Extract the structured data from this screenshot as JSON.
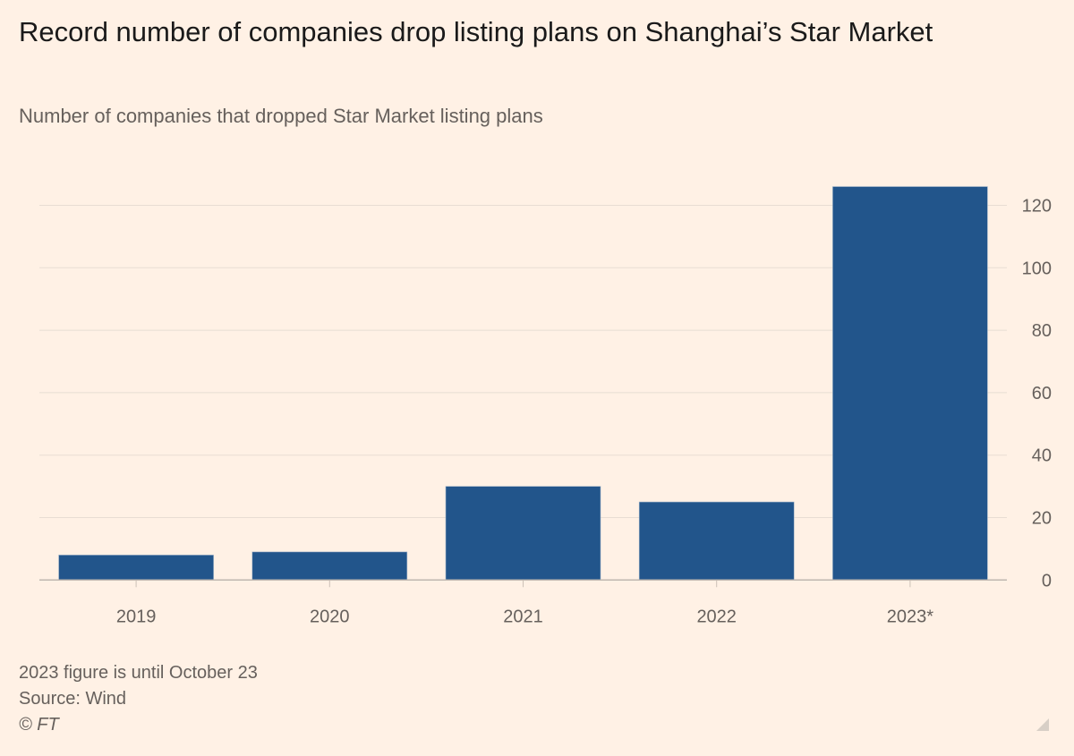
{
  "title": "Record number of companies drop listing plans on Shanghai’s Star Market",
  "subtitle": "Number of companies that dropped Star Market listing plans",
  "notes": {
    "footnote": "2023 figure is until October 23",
    "source": "Source: Wind",
    "copyright": "© FT"
  },
  "colors": {
    "bar": "#22558b",
    "background": "#fff1e5",
    "grid": "#e8ddd3"
  },
  "chart_data": {
    "type": "bar",
    "title": "Record number of companies drop listing plans on Shanghai’s Star Market",
    "subtitle": "Number of companies that dropped Star Market listing plans",
    "categories": [
      "2019",
      "2020",
      "2021",
      "2022",
      "2023*"
    ],
    "values": [
      8,
      9,
      30,
      25,
      126
    ],
    "xlabel": "",
    "ylabel": "",
    "ylim": [
      0,
      126
    ],
    "yticks": [
      0,
      20,
      40,
      60,
      80,
      100,
      120
    ],
    "y_axis_side": "right",
    "grid": true
  }
}
